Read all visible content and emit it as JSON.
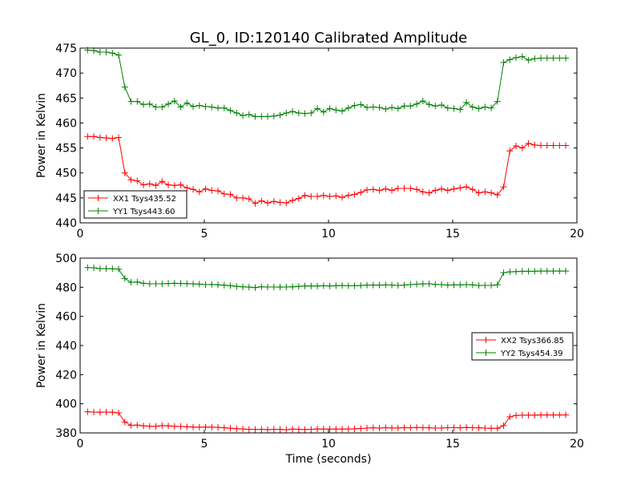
{
  "chart_data": [
    {
      "type": "line",
      "title": "GL_0, ID:120140 Calibrated Amplitude",
      "xlabel": "",
      "ylabel": "Power in Kelvin",
      "xlim": [
        0,
        20
      ],
      "ylim": [
        440,
        475
      ],
      "xticks": [
        0,
        5,
        10,
        15,
        20
      ],
      "yticks": [
        440,
        445,
        450,
        455,
        460,
        465,
        470,
        475
      ],
      "grid": false,
      "legend_position": "lower-left",
      "x": [
        0.3,
        0.55,
        0.8,
        1.05,
        1.3,
        1.55,
        1.8,
        2.05,
        2.3,
        2.55,
        2.8,
        3.05,
        3.3,
        3.55,
        3.8,
        4.05,
        4.3,
        4.55,
        4.8,
        5.05,
        5.3,
        5.55,
        5.8,
        6.05,
        6.3,
        6.55,
        6.8,
        7.05,
        7.3,
        7.55,
        7.8,
        8.05,
        8.3,
        8.55,
        8.8,
        9.05,
        9.3,
        9.55,
        9.8,
        10.05,
        10.3,
        10.55,
        10.8,
        11.05,
        11.3,
        11.55,
        11.8,
        12.05,
        12.3,
        12.55,
        12.8,
        13.05,
        13.3,
        13.55,
        13.8,
        14.05,
        14.3,
        14.55,
        14.8,
        15.05,
        15.3,
        15.55,
        15.8,
        16.05,
        16.3,
        16.55,
        16.8,
        17.05,
        17.3,
        17.55,
        17.8,
        18.05,
        18.3,
        18.55,
        18.8,
        19.05,
        19.3,
        19.55
      ],
      "series": [
        {
          "name": "XX1 Tsys435.52",
          "color": "#ff0000",
          "values": [
            457.3,
            457.3,
            457.1,
            457.0,
            456.9,
            457.1,
            450.0,
            448.6,
            448.4,
            447.6,
            447.8,
            447.5,
            448.3,
            447.6,
            447.5,
            447.6,
            447.0,
            446.7,
            446.2,
            446.8,
            446.5,
            446.4,
            445.8,
            445.7,
            445.0,
            445.0,
            444.8,
            443.9,
            444.4,
            444.0,
            444.3,
            444.1,
            444.0,
            444.5,
            444.9,
            445.5,
            445.3,
            445.3,
            445.5,
            445.3,
            445.4,
            445.1,
            445.5,
            445.7,
            446.1,
            446.6,
            446.7,
            446.5,
            446.8,
            446.5,
            446.9,
            446.9,
            446.9,
            446.7,
            446.2,
            446.0,
            446.5,
            446.8,
            446.5,
            446.8,
            447.0,
            447.2,
            446.7,
            446.0,
            446.2,
            446.0,
            445.6,
            447.2,
            454.4,
            455.4,
            455.0,
            455.9,
            455.6,
            455.5,
            455.5,
            455.5,
            455.5,
            455.5
          ]
        },
        {
          "name": "YY1 Tsys443.60",
          "color": "#008000",
          "values": [
            474.6,
            474.5,
            474.2,
            474.2,
            474.0,
            473.6,
            467.2,
            464.3,
            464.3,
            463.7,
            463.8,
            463.2,
            463.2,
            463.8,
            464.4,
            463.2,
            464.0,
            463.3,
            463.5,
            463.3,
            463.2,
            463.0,
            463.0,
            462.5,
            462.0,
            461.5,
            461.7,
            461.3,
            461.3,
            461.3,
            461.4,
            461.6,
            462.0,
            462.3,
            462.0,
            461.9,
            462.0,
            462.9,
            462.2,
            462.9,
            462.6,
            462.4,
            463.0,
            463.5,
            463.7,
            463.1,
            463.2,
            463.1,
            462.8,
            463.1,
            462.9,
            463.4,
            463.4,
            463.8,
            464.4,
            463.7,
            463.4,
            463.6,
            463.0,
            462.9,
            462.7,
            464.1,
            463.2,
            462.9,
            463.2,
            463.0,
            464.3,
            472.1,
            472.7,
            473.1,
            473.3,
            472.6,
            472.9,
            473.0,
            473.0,
            473.0,
            473.0,
            473.0
          ]
        }
      ]
    },
    {
      "type": "line",
      "title": "",
      "xlabel": "Time (seconds)",
      "ylabel": "Power in Kelvin",
      "xlim": [
        0,
        20
      ],
      "ylim": [
        380,
        500
      ],
      "xticks": [
        0,
        5,
        10,
        15,
        20
      ],
      "yticks": [
        380,
        400,
        420,
        440,
        460,
        480,
        500
      ],
      "grid": false,
      "legend_position": "center-right",
      "x": [
        0.3,
        0.55,
        0.8,
        1.05,
        1.3,
        1.55,
        1.8,
        2.05,
        2.3,
        2.55,
        2.8,
        3.05,
        3.3,
        3.55,
        3.8,
        4.05,
        4.3,
        4.55,
        4.8,
        5.05,
        5.3,
        5.55,
        5.8,
        6.05,
        6.3,
        6.55,
        6.8,
        7.05,
        7.3,
        7.55,
        7.8,
        8.05,
        8.3,
        8.55,
        8.8,
        9.05,
        9.3,
        9.55,
        9.8,
        10.05,
        10.3,
        10.55,
        10.8,
        11.05,
        11.3,
        11.55,
        11.8,
        12.05,
        12.3,
        12.55,
        12.8,
        13.05,
        13.3,
        13.55,
        13.8,
        14.05,
        14.3,
        14.55,
        14.8,
        15.05,
        15.3,
        15.55,
        15.8,
        16.05,
        16.3,
        16.55,
        16.8,
        17.05,
        17.3,
        17.55,
        17.8,
        18.05,
        18.3,
        18.55,
        18.8,
        19.05,
        19.3,
        19.55
      ],
      "series": [
        {
          "name": "XX2 Tsys366.85",
          "color": "#ff0000",
          "values": [
            394.5,
            394.3,
            394.2,
            394.3,
            394.2,
            393.7,
            387.5,
            385.2,
            385.4,
            384.8,
            384.6,
            384.5,
            385.0,
            384.8,
            384.5,
            384.5,
            384.2,
            384.0,
            383.9,
            384.0,
            384.0,
            383.8,
            383.5,
            383.2,
            382.9,
            382.7,
            382.5,
            382.4,
            382.4,
            382.3,
            382.5,
            382.4,
            382.2,
            382.6,
            382.5,
            382.3,
            382.5,
            382.7,
            382.6,
            382.6,
            382.6,
            382.6,
            382.7,
            382.8,
            383.0,
            383.3,
            383.5,
            383.3,
            383.6,
            383.4,
            383.4,
            383.6,
            383.5,
            383.7,
            383.6,
            383.5,
            383.3,
            383.4,
            383.6,
            383.6,
            383.5,
            383.7,
            383.6,
            383.5,
            383.3,
            383.2,
            383.2,
            385.0,
            391.0,
            392.0,
            392.2,
            392.2,
            392.2,
            392.3,
            392.3,
            392.3,
            392.3,
            392.3
          ]
        },
        {
          "name": "YY2 Tsys454.39",
          "color": "#008000",
          "values": [
            493.5,
            493.4,
            492.8,
            492.8,
            492.7,
            492.4,
            486.0,
            483.4,
            483.6,
            482.7,
            482.4,
            482.4,
            482.4,
            482.6,
            482.7,
            482.6,
            482.5,
            482.3,
            482.2,
            481.8,
            481.9,
            481.7,
            481.4,
            481.1,
            480.6,
            480.3,
            480.1,
            479.8,
            480.3,
            480.2,
            480.2,
            480.1,
            480.2,
            480.3,
            480.6,
            480.9,
            480.9,
            480.9,
            481.0,
            480.9,
            481.1,
            481.2,
            481.0,
            481.0,
            481.2,
            481.5,
            481.5,
            481.4,
            481.6,
            481.5,
            481.3,
            481.5,
            481.8,
            482.1,
            482.3,
            482.4,
            482.0,
            481.8,
            481.5,
            481.6,
            481.6,
            481.8,
            481.6,
            481.2,
            481.3,
            481.3,
            481.7,
            490.0,
            490.6,
            490.8,
            491.0,
            491.0,
            491.0,
            491.1,
            491.1,
            491.1,
            491.1,
            491.1
          ]
        }
      ]
    }
  ]
}
